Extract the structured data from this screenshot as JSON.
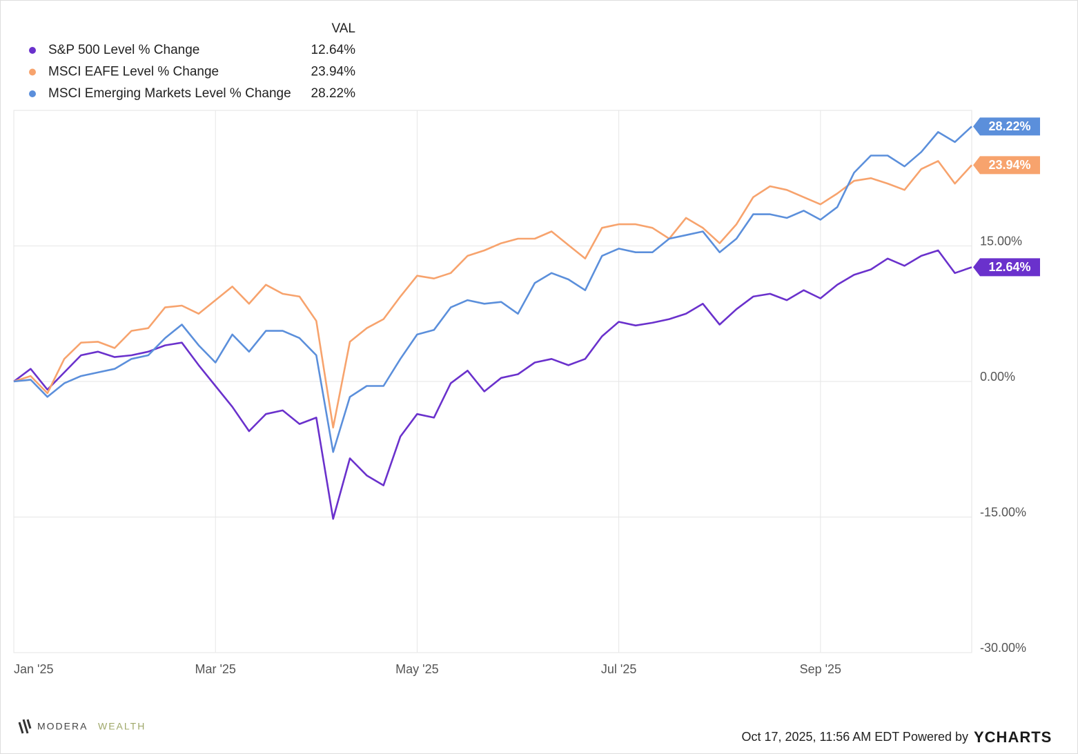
{
  "chart_data": {
    "type": "line",
    "legend_header": "VAL",
    "categories": [
      "Jan '25",
      null,
      null,
      null,
      null,
      null,
      null,
      null,
      null,
      null,
      null,
      null,
      "Mar '25",
      null,
      null,
      null,
      null,
      null,
      null,
      null,
      null,
      null,
      null,
      null,
      "May '25",
      null,
      null,
      null,
      null,
      null,
      null,
      null,
      null,
      null,
      null,
      null,
      "Jul '25",
      null,
      null,
      null,
      null,
      null,
      null,
      null,
      null,
      null,
      null,
      null,
      "Sep '25",
      null,
      null,
      null,
      null,
      null,
      null,
      null,
      null,
      null
    ],
    "ylim": [
      -30,
      30
    ],
    "yticks": [
      {
        "value": -30,
        "label": "-30.00%"
      },
      {
        "value": -15,
        "label": "-15.00%"
      },
      {
        "value": 0,
        "label": "0.00%"
      },
      {
        "value": 15,
        "label": "15.00%"
      }
    ],
    "grid": true,
    "legend": "top-left",
    "series": [
      {
        "name": "S&P 500 Level % Change",
        "color": "#6a31cc",
        "values": [
          0,
          1.4,
          -0.9,
          1.0,
          2.9,
          3.3,
          2.7,
          2.9,
          3.3,
          4.0,
          4.3,
          1.8,
          -0.5,
          -2.8,
          -5.5,
          -3.6,
          -3.2,
          -4.7,
          -4.0,
          -15.2,
          -8.5,
          -10.4,
          -11.5,
          -6.1,
          -3.6,
          -4.0,
          -0.2,
          1.2,
          -1.1,
          0.4,
          0.8,
          2.1,
          2.5,
          1.8,
          2.5,
          5.0,
          6.6,
          6.2,
          6.5,
          6.9,
          7.5,
          8.6,
          6.3,
          8.0,
          9.4,
          9.7,
          9.0,
          10.1,
          9.2,
          10.7,
          11.8,
          12.4,
          13.6,
          12.8,
          13.9,
          14.5,
          12.0,
          12.64
        ],
        "value_labels": [
          null,
          null,
          null,
          null,
          null,
          null,
          null,
          null,
          null,
          null,
          null,
          null,
          null,
          null,
          null,
          null,
          null,
          null,
          null,
          null,
          null,
          null,
          null,
          null,
          null,
          null,
          null,
          null,
          null,
          null,
          null,
          null,
          null,
          null,
          null,
          null,
          null,
          null,
          null,
          null,
          null,
          null,
          null,
          null,
          null,
          null,
          null,
          null,
          null,
          null,
          null,
          null,
          null,
          null,
          null,
          null,
          null,
          "12.64%"
        ]
      },
      {
        "name": "MSCI EAFE Level % Change",
        "color": "#f7a36d",
        "values": [
          0,
          0.6,
          -1.3,
          2.5,
          4.3,
          4.4,
          3.7,
          5.6,
          5.9,
          8.2,
          8.4,
          7.5,
          9.0,
          10.5,
          8.6,
          10.7,
          9.7,
          9.4,
          6.7,
          -5.1,
          4.4,
          5.9,
          6.9,
          9.4,
          11.7,
          11.4,
          12.0,
          13.9,
          14.5,
          15.3,
          15.8,
          15.8,
          16.6,
          15.1,
          13.6,
          17.0,
          17.4,
          17.4,
          17.0,
          15.8,
          18.1,
          17.0,
          15.3,
          17.4,
          20.4,
          21.6,
          21.2,
          20.4,
          19.6,
          20.8,
          22.2,
          22.5,
          21.9,
          21.2,
          23.5,
          24.4,
          21.9,
          23.94
        ],
        "value_labels": [
          null,
          null,
          null,
          null,
          null,
          null,
          null,
          null,
          null,
          null,
          null,
          null,
          null,
          null,
          null,
          null,
          null,
          null,
          null,
          null,
          null,
          null,
          null,
          null,
          null,
          null,
          null,
          null,
          null,
          null,
          null,
          null,
          null,
          null,
          null,
          null,
          null,
          null,
          null,
          null,
          null,
          null,
          null,
          null,
          null,
          null,
          null,
          null,
          null,
          null,
          null,
          null,
          null,
          null,
          null,
          null,
          null,
          "23.94%"
        ]
      },
      {
        "name": "MSCI Emerging Markets Level % Change",
        "color": "#5b8fdb",
        "values": [
          0,
          0.2,
          -1.7,
          -0.2,
          0.6,
          1.0,
          1.4,
          2.5,
          2.9,
          4.8,
          6.3,
          4.0,
          2.1,
          5.2,
          3.3,
          5.6,
          5.6,
          4.8,
          2.9,
          -7.8,
          -1.7,
          -0.5,
          -0.5,
          2.5,
          5.2,
          5.7,
          8.2,
          9.0,
          8.6,
          8.8,
          7.5,
          10.9,
          12.0,
          11.3,
          10.1,
          13.9,
          14.7,
          14.3,
          14.3,
          15.8,
          16.2,
          16.6,
          14.3,
          15.8,
          18.5,
          18.5,
          18.1,
          18.9,
          17.9,
          19.3,
          23.1,
          25.0,
          25.0,
          23.8,
          25.4,
          27.6,
          26.5,
          28.22
        ],
        "value_labels": [
          null,
          null,
          null,
          null,
          null,
          null,
          null,
          null,
          null,
          null,
          null,
          null,
          null,
          null,
          null,
          null,
          null,
          null,
          null,
          null,
          null,
          null,
          null,
          null,
          null,
          null,
          null,
          null,
          null,
          null,
          null,
          null,
          null,
          null,
          null,
          null,
          null,
          null,
          null,
          null,
          null,
          null,
          null,
          null,
          null,
          null,
          null,
          null,
          null,
          null,
          null,
          null,
          null,
          null,
          null,
          null,
          null,
          "28.22%"
        ]
      }
    ],
    "footer": "Oct 17, 2025, 11:56 AM EDT Powered by",
    "source": "YCHARTS",
    "logo": [
      "MODERA",
      "WEALTH"
    ]
  }
}
